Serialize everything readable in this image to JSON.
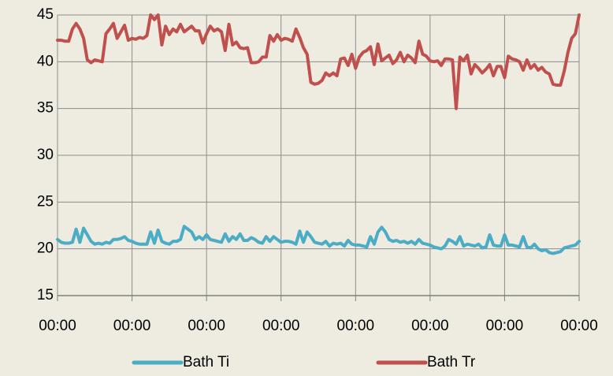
{
  "chart_data": {
    "type": "line",
    "categories": [
      "00:00",
      null,
      null,
      null,
      null,
      null,
      null,
      null,
      null,
      null,
      null,
      null,
      null,
      null,
      null,
      null,
      null,
      null,
      null,
      null,
      "00:00",
      null,
      null,
      null,
      null,
      null,
      null,
      null,
      null,
      null,
      null,
      null,
      null,
      null,
      null,
      null,
      null,
      null,
      null,
      null,
      "00:00",
      null,
      null,
      null,
      null,
      null,
      null,
      null,
      null,
      null,
      null,
      null,
      null,
      null,
      null,
      null,
      null,
      null,
      null,
      null,
      "00:00",
      null,
      null,
      null,
      null,
      null,
      null,
      null,
      null,
      null,
      null,
      null,
      null,
      null,
      null,
      null,
      null,
      null,
      null,
      null,
      "00:00",
      null,
      null,
      null,
      null,
      null,
      null,
      null,
      null,
      null,
      null,
      null,
      null,
      null,
      null,
      null,
      null,
      null,
      null,
      null,
      "00:00",
      null,
      null,
      null,
      null,
      null,
      null,
      null,
      null,
      null,
      null,
      null,
      null,
      null,
      null,
      null,
      null,
      null,
      null,
      null,
      "00:00",
      null,
      null,
      null,
      null,
      null,
      null,
      null,
      null,
      null,
      null,
      null,
      null,
      null,
      null,
      null,
      null,
      null,
      null,
      null,
      "00:00"
    ],
    "series": [
      {
        "name": "Bath Ti",
        "color": "#4bacc6",
        "values": [
          21.0,
          20.7,
          20.6,
          20.6,
          20.7,
          22.1,
          20.7,
          22.2,
          21.5,
          20.8,
          20.5,
          20.6,
          20.5,
          20.7,
          20.6,
          21.0,
          21.0,
          21.1,
          21.3,
          20.9,
          20.8,
          20.6,
          20.5,
          20.5,
          20.5,
          21.8,
          20.6,
          22.0,
          20.8,
          20.6,
          20.5,
          20.8,
          20.8,
          21.0,
          22.4,
          22.1,
          21.8,
          21.0,
          21.3,
          21.0,
          21.5,
          21.0,
          20.9,
          20.8,
          20.7,
          21.6,
          20.8,
          21.3,
          21.0,
          21.6,
          20.9,
          20.9,
          21.2,
          21.0,
          20.7,
          20.6,
          21.3,
          20.8,
          21.3,
          21.0,
          20.7,
          20.8,
          20.8,
          20.7,
          20.5,
          21.9,
          20.7,
          21.8,
          21.3,
          20.7,
          20.6,
          20.5,
          20.8,
          20.3,
          20.6,
          20.5,
          20.6,
          20.3,
          20.9,
          20.5,
          20.4,
          20.4,
          20.3,
          20.2,
          21.3,
          20.5,
          21.8,
          22.3,
          21.8,
          21.0,
          20.8,
          20.9,
          20.7,
          20.8,
          20.6,
          20.8,
          20.5,
          21.0,
          20.6,
          20.5,
          20.4,
          20.2,
          20.1,
          20.0,
          20.3,
          21.0,
          20.8,
          20.5,
          21.3,
          20.3,
          20.5,
          20.4,
          20.3,
          20.5,
          20.1,
          20.2,
          21.5,
          20.4,
          20.3,
          20.3,
          21.5,
          20.4,
          20.4,
          20.3,
          20.2,
          21.3,
          20.2,
          20.1,
          20.5,
          20.0,
          19.8,
          19.9,
          19.6,
          19.5,
          19.6,
          19.7,
          20.1,
          20.2,
          20.3,
          20.4,
          20.8
        ]
      },
      {
        "name": "Bath Tr",
        "color": "#c0504d",
        "values": [
          42.3,
          42.3,
          42.2,
          42.2,
          43.5,
          44.1,
          43.5,
          42.5,
          40.2,
          39.9,
          40.2,
          40.1,
          40.0,
          43.0,
          43.5,
          44.1,
          42.5,
          43.2,
          43.9,
          42.3,
          42.5,
          42.4,
          42.6,
          42.5,
          42.8,
          45.0,
          44.5,
          45.0,
          41.8,
          43.8,
          42.9,
          43.5,
          43.2,
          44.0,
          43.2,
          43.5,
          43.8,
          43.3,
          43.3,
          42.0,
          43.0,
          43.8,
          43.3,
          43.5,
          43.2,
          41.2,
          44.0,
          41.8,
          42.1,
          41.5,
          41.4,
          41.5,
          39.9,
          39.9,
          40.0,
          40.5,
          40.5,
          42.8,
          42.2,
          42.9,
          42.3,
          42.5,
          42.4,
          42.2,
          43.5,
          42.6,
          41.5,
          40.8,
          37.8,
          37.6,
          37.7,
          38.0,
          38.8,
          38.5,
          38.8,
          38.5,
          40.3,
          40.4,
          39.6,
          40.8,
          39.3,
          40.5,
          41.0,
          41.2,
          41.6,
          39.7,
          41.9,
          40.1,
          40.4,
          40.7,
          39.8,
          40.2,
          41.0,
          40.0,
          40.7,
          40.4,
          39.9,
          42.2,
          40.8,
          40.6,
          40.1,
          40.0,
          40.1,
          39.6,
          40.3,
          40.3,
          40.2,
          35.0,
          40.5,
          40.1,
          40.7,
          38.7,
          39.7,
          39.3,
          38.8,
          39.2,
          39.7,
          38.5,
          39.5,
          39.5,
          38.3,
          40.6,
          40.3,
          40.2,
          40.0,
          39.1,
          40.2,
          39.3,
          39.7,
          39.1,
          39.4,
          38.9,
          38.7,
          37.6,
          37.5,
          37.5,
          39.0,
          41.0,
          42.5,
          43.0,
          45.0
        ]
      }
    ],
    "ylim": [
      15,
      45
    ],
    "yticks": [
      15,
      20,
      25,
      30,
      35,
      40,
      45
    ],
    "grid": true,
    "legend": "bottom"
  }
}
